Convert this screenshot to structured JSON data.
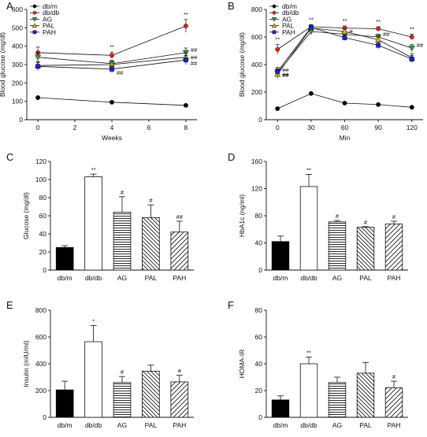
{
  "chart_data": [
    {
      "panel": "A",
      "type": "line",
      "xlabel": "Weeks",
      "ylabel": "Blood glucose (mg/dl)",
      "xlim": [
        -0.6,
        8.6
      ],
      "ylim": [
        0,
        600
      ],
      "xticks": [
        0,
        2,
        4,
        6,
        8
      ],
      "yticks": [
        0,
        100,
        200,
        300,
        400,
        500,
        600
      ],
      "x": [
        0,
        4,
        8
      ],
      "series": [
        {
          "name": "db/m",
          "color": "#000000",
          "marker": "circle",
          "values": [
            120,
            95,
            78
          ],
          "err": [
            6,
            5,
            5
          ],
          "sig": [
            "",
            "",
            ""
          ]
        },
        {
          "name": "db/db",
          "color": "#e2231a",
          "marker": "circle",
          "values": [
            365,
            350,
            510
          ],
          "err": [
            30,
            18,
            35
          ],
          "sig": [
            "",
            "**",
            "**"
          ]
        },
        {
          "name": "AG",
          "color": "#2aa640",
          "marker": "triangle-down",
          "values": [
            340,
            305,
            365
          ],
          "err": [
            25,
            18,
            25
          ],
          "sig": [
            "",
            "",
            "##"
          ]
        },
        {
          "name": "PAL",
          "color": "#e8b400",
          "marker": "triangle-up",
          "values": [
            295,
            300,
            340
          ],
          "err": [
            20,
            18,
            25
          ],
          "sig": [
            "",
            "",
            "##"
          ]
        },
        {
          "name": "PAH",
          "color": "#1a22d4",
          "marker": "square",
          "values": [
            290,
            275,
            325
          ],
          "err": [
            22,
            20,
            25
          ],
          "sig": [
            "",
            "##",
            "##"
          ]
        }
      ]
    },
    {
      "panel": "B",
      "type": "line",
      "xlabel": "Min",
      "ylabel": "Blood glucose (mg/dl)",
      "xlim": [
        -10,
        130
      ],
      "ylim": [
        0,
        800
      ],
      "xticks": [
        0,
        30,
        60,
        90,
        120
      ],
      "yticks": [
        0,
        200,
        400,
        600,
        800
      ],
      "x": [
        0,
        30,
        60,
        90,
        120
      ],
      "series": [
        {
          "name": "db/m",
          "color": "#000000",
          "marker": "circle",
          "values": [
            80,
            190,
            120,
            110,
            90
          ],
          "err": [
            4,
            6,
            5,
            5,
            4
          ],
          "sig": [
            "",
            "",
            "",
            "",
            ""
          ]
        },
        {
          "name": "db/db",
          "color": "#e2231a",
          "marker": "circle",
          "values": [
            510,
            675,
            665,
            660,
            600
          ],
          "err": [
            35,
            15,
            15,
            15,
            20
          ],
          "sig": [
            "**",
            "**",
            "**",
            "**",
            "**"
          ]
        },
        {
          "name": "AG",
          "color": "#2aa640",
          "marker": "triangle-down",
          "values": [
            340,
            640,
            620,
            600,
            520
          ],
          "err": [
            30,
            15,
            20,
            20,
            25
          ],
          "sig": [
            "##",
            "",
            "#",
            "##",
            "##"
          ]
        },
        {
          "name": "PAL",
          "color": "#e8b400",
          "marker": "triangle-up",
          "values": [
            330,
            665,
            640,
            580,
            450
          ],
          "err": [
            30,
            15,
            20,
            25,
            30
          ],
          "sig": [
            "##",
            "",
            "",
            "",
            ""
          ]
        },
        {
          "name": "PAH",
          "color": "#1a22d4",
          "marker": "square",
          "values": [
            350,
            670,
            595,
            540,
            440
          ],
          "err": [
            30,
            15,
            20,
            25,
            25
          ],
          "sig": [
            "##",
            "",
            "",
            "",
            ""
          ]
        }
      ]
    },
    {
      "panel": "C",
      "type": "bar",
      "ylabel": "Glucose (mg/dl)",
      "ylim": [
        0,
        120
      ],
      "yticks": [
        0,
        20,
        40,
        60,
        80,
        100,
        120
      ],
      "categories": [
        "db/m",
        "db/db",
        "AG",
        "PAL",
        "PAH"
      ],
      "values": [
        25,
        103,
        64,
        58,
        42
      ],
      "err": [
        2,
        3,
        17,
        14,
        12
      ],
      "sig": [
        "",
        "**",
        "#",
        "#",
        "##"
      ],
      "fills": [
        "solid",
        "open",
        "hlines",
        "diag-back",
        "diag-fwd"
      ]
    },
    {
      "panel": "D",
      "type": "bar",
      "ylabel": "HbA1c (ng/ml)",
      "ylim": [
        0,
        160
      ],
      "yticks": [
        0,
        40,
        80,
        120,
        160
      ],
      "categories": [
        "db/m",
        "db/db",
        "AG",
        "PAL",
        "PAH"
      ],
      "values": [
        42,
        123,
        71,
        63,
        68
      ],
      "err": [
        8,
        18,
        2,
        1,
        4
      ],
      "sig": [
        "",
        "**",
        "#",
        "#",
        "#"
      ],
      "fills": [
        "solid",
        "open",
        "hlines",
        "diag-back",
        "diag-fwd"
      ]
    },
    {
      "panel": "E",
      "type": "bar",
      "ylabel": "Insulin (mIU/ml)",
      "ylim": [
        0,
        800
      ],
      "yticks": [
        0,
        200,
        400,
        600,
        800
      ],
      "categories": [
        "db/m",
        "db/db",
        "AG",
        "PAL",
        "PAH"
      ],
      "values": [
        205,
        565,
        260,
        345,
        265
      ],
      "err": [
        65,
        120,
        45,
        45,
        50
      ],
      "sig": [
        "",
        "*",
        "#",
        "",
        "#"
      ],
      "fills": [
        "solid",
        "open",
        "hlines",
        "diag-back",
        "diag-fwd"
      ]
    },
    {
      "panel": "F",
      "type": "bar",
      "ylabel": "HOMA-IR",
      "ylim": [
        0,
        80
      ],
      "yticks": [
        0,
        20,
        40,
        60,
        80
      ],
      "categories": [
        "db/m",
        "db/db",
        "AG",
        "PAL",
        "PAH"
      ],
      "values": [
        13,
        40,
        26,
        33,
        22
      ],
      "err": [
        3,
        5,
        4,
        8,
        5
      ],
      "sig": [
        "",
        "**",
        "",
        "",
        "#"
      ],
      "fills": [
        "solid",
        "open",
        "hlines",
        "diag-back",
        "diag-fwd"
      ]
    }
  ]
}
